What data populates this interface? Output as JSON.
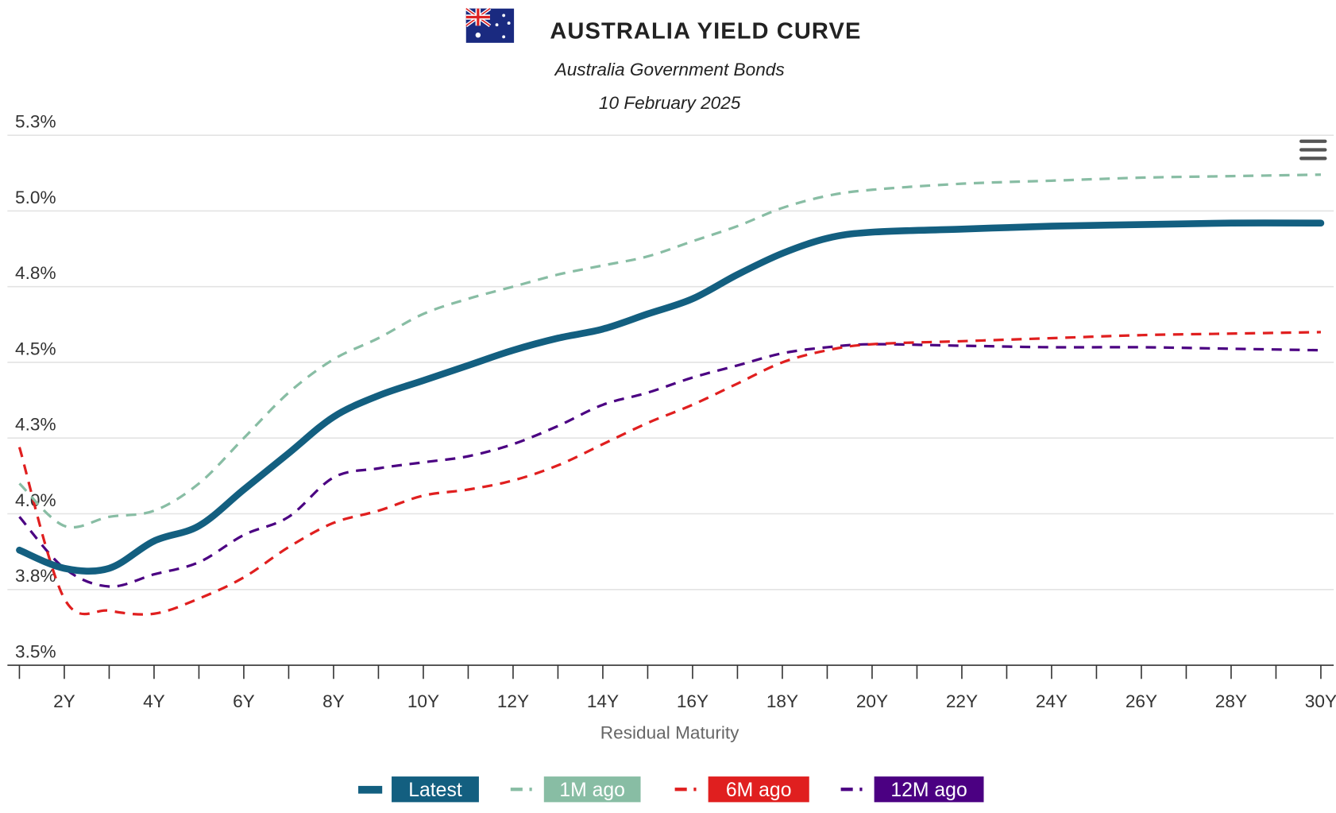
{
  "header": {
    "title": "AUSTRALIA YIELD CURVE",
    "subtitle": "Australia Government Bonds",
    "date": "10 February 2025",
    "flag_icon": "australia-flag-icon",
    "menu_icon": "hamburger-menu-icon"
  },
  "chart_data": {
    "type": "line",
    "title": "AUSTRALIA YIELD CURVE",
    "subtitle": "Australia Government Bonds",
    "xlabel": "Residual Maturity",
    "ylabel": "",
    "xlim": [
      1,
      30
    ],
    "ylim": [
      3.5,
      5.25
    ],
    "grid": true,
    "legend_position": "bottom",
    "y_ticks": [
      3.5,
      3.75,
      4.0,
      4.25,
      4.5,
      4.75,
      5.0,
      5.25
    ],
    "y_tick_labels": [
      "3.5%",
      "3.8%",
      "4.0%",
      "4.3%",
      "4.5%",
      "4.8%",
      "5.0%",
      "5.3%"
    ],
    "x_ticks": [
      2,
      4,
      6,
      8,
      10,
      12,
      14,
      16,
      18,
      20,
      22,
      24,
      26,
      28,
      30
    ],
    "x_tick_labels": [
      "2Y",
      "4Y",
      "6Y",
      "8Y",
      "10Y",
      "12Y",
      "14Y",
      "16Y",
      "18Y",
      "20Y",
      "22Y",
      "24Y",
      "26Y",
      "28Y",
      "30Y"
    ],
    "x": [
      1,
      2,
      3,
      4,
      5,
      6,
      7,
      8,
      9,
      10,
      11,
      12,
      13,
      14,
      15,
      16,
      17,
      18,
      19,
      20,
      22,
      24,
      26,
      28,
      30
    ],
    "series": [
      {
        "name": "Latest",
        "color": "#135f80",
        "style": "solid",
        "values": [
          3.88,
          3.82,
          3.82,
          3.91,
          3.96,
          4.08,
          4.2,
          4.32,
          4.39,
          4.44,
          4.49,
          4.54,
          4.58,
          4.61,
          4.66,
          4.71,
          4.79,
          4.86,
          4.91,
          4.93,
          4.94,
          4.95,
          4.955,
          4.96,
          4.96
        ]
      },
      {
        "name": "1M ago",
        "color": "#88bda4",
        "style": "dashed",
        "values": [
          4.1,
          3.96,
          3.99,
          4.01,
          4.1,
          4.25,
          4.4,
          4.51,
          4.58,
          4.66,
          4.71,
          4.75,
          4.79,
          4.82,
          4.85,
          4.9,
          4.95,
          5.01,
          5.05,
          5.07,
          5.09,
          5.1,
          5.11,
          5.115,
          5.12
        ]
      },
      {
        "name": "6M ago",
        "color": "#e01f1f",
        "style": "dashed",
        "values": [
          4.22,
          3.72,
          3.68,
          3.67,
          3.72,
          3.79,
          3.89,
          3.97,
          4.01,
          4.06,
          4.08,
          4.11,
          4.16,
          4.23,
          4.3,
          4.36,
          4.43,
          4.5,
          4.54,
          4.56,
          4.57,
          4.58,
          4.59,
          4.595,
          4.6
        ]
      },
      {
        "name": "12M ago",
        "color": "#4b0082",
        "style": "dashed",
        "values": [
          3.99,
          3.82,
          3.76,
          3.8,
          3.84,
          3.93,
          3.99,
          4.12,
          4.15,
          4.17,
          4.19,
          4.23,
          4.29,
          4.36,
          4.4,
          4.45,
          4.49,
          4.53,
          4.55,
          4.56,
          4.555,
          4.55,
          4.55,
          4.545,
          4.54
        ]
      }
    ]
  }
}
